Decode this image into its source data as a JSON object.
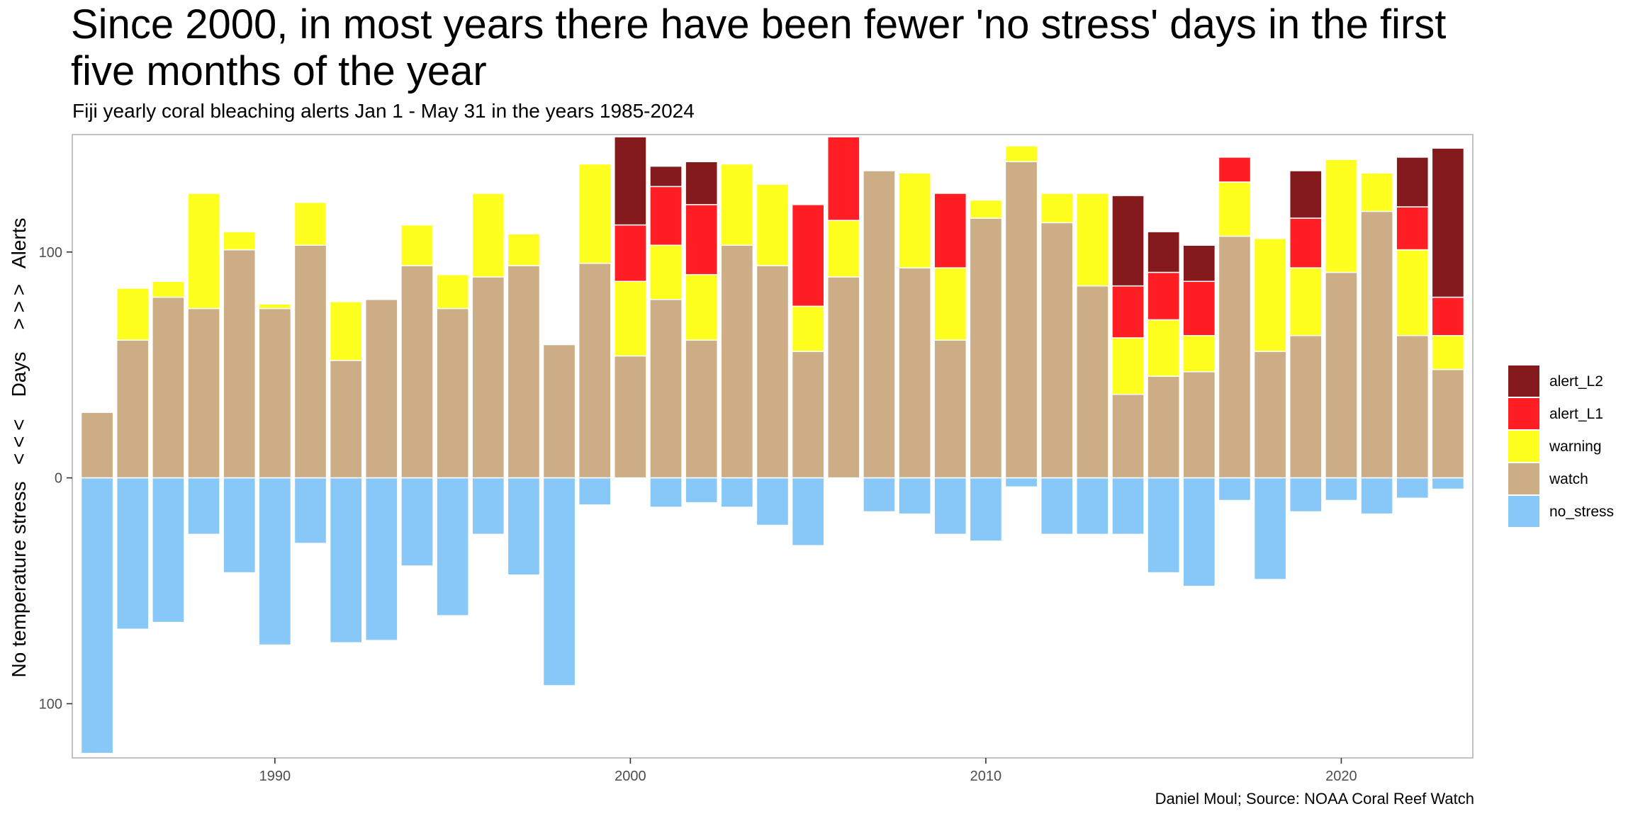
{
  "chart_data": {
    "type": "bar",
    "stacked": true,
    "diverging": true,
    "title": "Since 2000, in most years there have been fewer 'no stress' days in the first five months of the year",
    "subtitle": "Fiji yearly coral bleaching alerts Jan 1 - May 31 in the years 1985-2024",
    "ylabel": "No temperature stress   < < <    Days    > > >   Alerts",
    "caption": "Daniel Moul; Source: NOAA Coral Reef Watch",
    "xlim": [
      1984.3,
      2023.7
    ],
    "ylim": [
      -124,
      152
    ],
    "x_ticks": [
      1990,
      2000,
      2010,
      2020
    ],
    "y_ticks": [
      {
        "value": -100,
        "label": "100"
      },
      {
        "value": 0,
        "label": "0"
      },
      {
        "value": 100,
        "label": "100"
      }
    ],
    "grid": false,
    "legend_position": "right",
    "legend_order": [
      "alert_L2",
      "alert_L1",
      "warning",
      "watch",
      "no_stress"
    ],
    "colors": {
      "alert_L2": "#841a1c",
      "alert_L1": "#ff1e24",
      "warning": "#ffff1f",
      "watch": "#cdad85",
      "no_stress": "#87c8f8"
    },
    "years": [
      1985,
      1986,
      1987,
      1988,
      1989,
      1990,
      1991,
      1992,
      1993,
      1994,
      1995,
      1996,
      1997,
      1998,
      1999,
      2000,
      2001,
      2002,
      2003,
      2004,
      2005,
      2006,
      2007,
      2008,
      2009,
      2010,
      2011,
      2012,
      2013,
      2014,
      2015,
      2016,
      2017,
      2018,
      2019,
      2020,
      2021,
      2022,
      2023
    ],
    "series": [
      {
        "name": "watch",
        "values": [
          29,
          61,
          80,
          75,
          101,
          75,
          103,
          52,
          79,
          94,
          75,
          89,
          94,
          59,
          95,
          54,
          79,
          61,
          103,
          94,
          56,
          89,
          136,
          93,
          61,
          115,
          140,
          113,
          85,
          37,
          45,
          47,
          107,
          56,
          63,
          91,
          118,
          63,
          48
        ]
      },
      {
        "name": "warning",
        "values": [
          0,
          23,
          7,
          51,
          8,
          2,
          19,
          26,
          0,
          18,
          15,
          37,
          14,
          0,
          44,
          33,
          24,
          29,
          36,
          36,
          20,
          25,
          0,
          42,
          32,
          8,
          7,
          13,
          41,
          25,
          25,
          16,
          24,
          50,
          30,
          50,
          17,
          38,
          15
        ]
      },
      {
        "name": "alert_L1",
        "values": [
          0,
          0,
          0,
          0,
          0,
          0,
          0,
          0,
          0,
          0,
          0,
          0,
          0,
          0,
          0,
          25,
          26,
          31,
          0,
          0,
          45,
          37,
          0,
          0,
          33,
          0,
          0,
          0,
          0,
          23,
          21,
          24,
          11,
          0,
          22,
          0,
          0,
          19,
          17
        ]
      },
      {
        "name": "alert_L2",
        "values": [
          0,
          0,
          0,
          0,
          0,
          0,
          0,
          0,
          0,
          0,
          0,
          0,
          0,
          0,
          0,
          39,
          9,
          19,
          0,
          0,
          0,
          0,
          0,
          0,
          0,
          0,
          0,
          0,
          0,
          40,
          18,
          16,
          0,
          0,
          21,
          0,
          0,
          22,
          66
        ]
      },
      {
        "name": "no_stress",
        "values": [
          -122,
          -67,
          -64,
          -25,
          -42,
          -74,
          -29,
          -73,
          -72,
          -39,
          -61,
          -25,
          -43,
          -92,
          -12,
          0,
          -13,
          -11,
          -13,
          -21,
          -30,
          0,
          -15,
          -16,
          -25,
          -28,
          -4,
          -25,
          -25,
          -25,
          -42,
          -48,
          -10,
          -45,
          -15,
          -10,
          -16,
          -9,
          -5
        ]
      }
    ]
  }
}
